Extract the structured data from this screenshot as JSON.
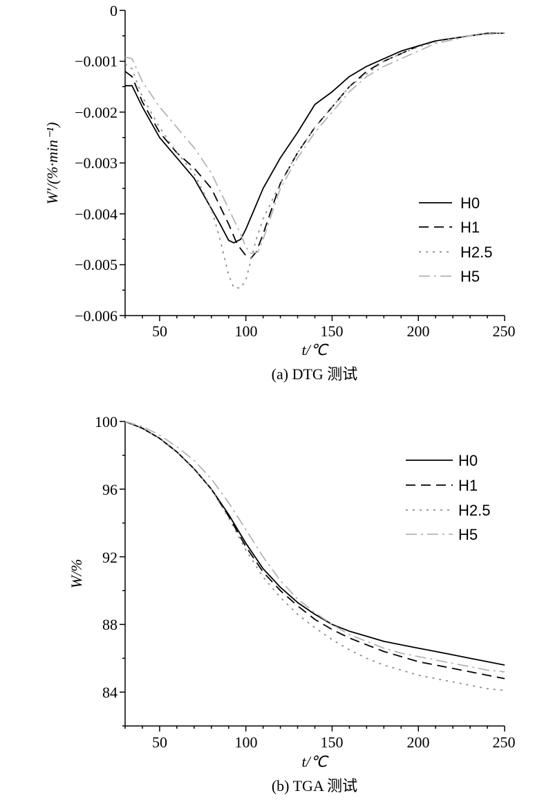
{
  "charts": [
    {
      "caption": "(a) DTG 测试",
      "xlabel": "t/℃",
      "ylabel": "W′/(%·min⁻¹)",
      "yticks": [
        "0",
        "−0.001",
        "−0.002",
        "−0.003",
        "−0.004",
        "−0.005",
        "−0.006"
      ],
      "xticks": [
        "50",
        "100",
        "150",
        "200",
        "250"
      ]
    },
    {
      "caption": "(b) TGA 测试",
      "xlabel": "t/℃",
      "ylabel": "W/%",
      "yticks": [
        "100",
        "96",
        "92",
        "88",
        "84"
      ],
      "xticks": [
        "50",
        "100",
        "150",
        "200",
        "250"
      ]
    }
  ],
  "legend": [
    "H0",
    "H1",
    "H2.5",
    "H5"
  ],
  "series_style": {
    "H0": {
      "color": "#000000",
      "dash": "none"
    },
    "H1": {
      "color": "#000000",
      "dash": "14,8"
    },
    "H2.5": {
      "color": "#8c8c8c",
      "dash": "3,7"
    },
    "H5": {
      "color": "#b4b4b4",
      "dash": "16,6,3,6"
    }
  },
  "chart_data": [
    {
      "type": "line",
      "title": "",
      "xlabel": "t/℃",
      "ylabel": "W′/(%·min⁻¹)",
      "xlim": [
        30,
        250
      ],
      "ylim": [
        -0.006,
        0
      ],
      "grid": false,
      "legend_position": "right",
      "series": [
        {
          "name": "H0",
          "points": [
            [
              30,
              -0.00148
            ],
            [
              34,
              -0.00148
            ],
            [
              40,
              -0.0019
            ],
            [
              50,
              -0.0025
            ],
            [
              60,
              -0.0029
            ],
            [
              70,
              -0.0033
            ],
            [
              80,
              -0.0039
            ],
            [
              85,
              -0.0042
            ],
            [
              90,
              -0.00452
            ],
            [
              93,
              -0.00457
            ],
            [
              97,
              -0.0045
            ],
            [
              100,
              -0.0043
            ],
            [
              105,
              -0.0039
            ],
            [
              110,
              -0.0035
            ],
            [
              120,
              -0.0029
            ],
            [
              130,
              -0.0024
            ],
            [
              140,
              -0.00185
            ],
            [
              150,
              -0.0016
            ],
            [
              160,
              -0.0013
            ],
            [
              170,
              -0.0011
            ],
            [
              180,
              -0.00095
            ],
            [
              190,
              -0.0008
            ],
            [
              200,
              -0.0007
            ],
            [
              210,
              -0.0006
            ],
            [
              220,
              -0.00055
            ],
            [
              230,
              -0.0005
            ],
            [
              240,
              -0.00045
            ],
            [
              250,
              -0.00045
            ]
          ]
        },
        {
          "name": "H1",
          "points": [
            [
              30,
              -0.0012
            ],
            [
              34,
              -0.0013
            ],
            [
              40,
              -0.0018
            ],
            [
              50,
              -0.0024
            ],
            [
              60,
              -0.0028
            ],
            [
              70,
              -0.0031
            ],
            [
              80,
              -0.0035
            ],
            [
              90,
              -0.0042
            ],
            [
              95,
              -0.0046
            ],
            [
              100,
              -0.00482
            ],
            [
              103,
              -0.00487
            ],
            [
              106,
              -0.00475
            ],
            [
              110,
              -0.0044
            ],
            [
              115,
              -0.0039
            ],
            [
              120,
              -0.0034
            ],
            [
              130,
              -0.0028
            ],
            [
              140,
              -0.0023
            ],
            [
              150,
              -0.0019
            ],
            [
              160,
              -0.0015
            ],
            [
              170,
              -0.0012
            ],
            [
              180,
              -0.001
            ],
            [
              190,
              -0.00085
            ],
            [
              200,
              -0.0007
            ],
            [
              210,
              -0.0006
            ],
            [
              220,
              -0.00055
            ],
            [
              230,
              -0.0005
            ],
            [
              240,
              -0.00045
            ],
            [
              250,
              -0.00045
            ]
          ]
        },
        {
          "name": "H2.5",
          "points": [
            [
              30,
              -0.00105
            ],
            [
              34,
              -0.00115
            ],
            [
              40,
              -0.0017
            ],
            [
              50,
              -0.0023
            ],
            [
              60,
              -0.0028
            ],
            [
              70,
              -0.0032
            ],
            [
              80,
              -0.0039
            ],
            [
              85,
              -0.0045
            ],
            [
              90,
              -0.0052
            ],
            [
              93,
              -0.00545
            ],
            [
              97,
              -0.00546
            ],
            [
              100,
              -0.0053
            ],
            [
              103,
              -0.0049
            ],
            [
              106,
              -0.0045
            ],
            [
              110,
              -0.0041
            ],
            [
              120,
              -0.0034
            ],
            [
              130,
              -0.0028
            ],
            [
              140,
              -0.0023
            ],
            [
              150,
              -0.0019
            ],
            [
              160,
              -0.0015
            ],
            [
              170,
              -0.00125
            ],
            [
              180,
              -0.001
            ],
            [
              190,
              -0.00085
            ],
            [
              200,
              -0.00072
            ],
            [
              210,
              -0.00062
            ],
            [
              220,
              -0.00055
            ],
            [
              230,
              -0.0005
            ],
            [
              240,
              -0.00045
            ],
            [
              250,
              -0.00045
            ]
          ]
        },
        {
          "name": "H5",
          "points": [
            [
              30,
              -0.00092
            ],
            [
              34,
              -0.00095
            ],
            [
              40,
              -0.0014
            ],
            [
              50,
              -0.0019
            ],
            [
              60,
              -0.0023
            ],
            [
              70,
              -0.0027
            ],
            [
              80,
              -0.0032
            ],
            [
              90,
              -0.0039
            ],
            [
              97,
              -0.0044
            ],
            [
              100,
              -0.00465
            ],
            [
              103,
              -0.00478
            ],
            [
              107,
              -0.00475
            ],
            [
              110,
              -0.0045
            ],
            [
              115,
              -0.004
            ],
            [
              120,
              -0.0035
            ],
            [
              130,
              -0.0029
            ],
            [
              140,
              -0.0024
            ],
            [
              150,
              -0.002
            ],
            [
              160,
              -0.0016
            ],
            [
              170,
              -0.0013
            ],
            [
              180,
              -0.0011
            ],
            [
              190,
              -0.00095
            ],
            [
              200,
              -0.0008
            ],
            [
              210,
              -0.00065
            ],
            [
              220,
              -0.00058
            ],
            [
              230,
              -0.0005
            ],
            [
              240,
              -0.00047
            ],
            [
              250,
              -0.00045
            ]
          ]
        }
      ]
    },
    {
      "type": "line",
      "title": "",
      "xlabel": "t/℃",
      "ylabel": "W/%",
      "xlim": [
        30,
        250
      ],
      "ylim": [
        82,
        100
      ],
      "grid": false,
      "legend_position": "top-right",
      "series": [
        {
          "name": "H0",
          "points": [
            [
              30,
              100
            ],
            [
              40,
              99.6
            ],
            [
              50,
              99
            ],
            [
              60,
              98.2
            ],
            [
              70,
              97.2
            ],
            [
              80,
              96
            ],
            [
              90,
              94.5
            ],
            [
              100,
              92.8
            ],
            [
              110,
              91.3
            ],
            [
              120,
              90.2
            ],
            [
              130,
              89.3
            ],
            [
              140,
              88.6
            ],
            [
              150,
              88
            ],
            [
              160,
              87.6
            ],
            [
              170,
              87.3
            ],
            [
              180,
              87
            ],
            [
              190,
              86.8
            ],
            [
              200,
              86.6
            ],
            [
              210,
              86.4
            ],
            [
              220,
              86.2
            ],
            [
              230,
              86
            ],
            [
              240,
              85.8
            ],
            [
              250,
              85.6
            ]
          ]
        },
        {
          "name": "H1",
          "points": [
            [
              30,
              100
            ],
            [
              40,
              99.6
            ],
            [
              50,
              99
            ],
            [
              60,
              98.2
            ],
            [
              70,
              97.2
            ],
            [
              80,
              96
            ],
            [
              90,
              94.4
            ],
            [
              100,
              92.6
            ],
            [
              110,
              91.1
            ],
            [
              120,
              90
            ],
            [
              130,
              89.1
            ],
            [
              140,
              88.3
            ],
            [
              150,
              87.7
            ],
            [
              160,
              87.2
            ],
            [
              170,
              86.8
            ],
            [
              180,
              86.4
            ],
            [
              190,
              86.1
            ],
            [
              200,
              85.8
            ],
            [
              210,
              85.6
            ],
            [
              220,
              85.4
            ],
            [
              230,
              85.2
            ],
            [
              240,
              85
            ],
            [
              250,
              84.8
            ]
          ]
        },
        {
          "name": "H2.5",
          "points": [
            [
              30,
              100
            ],
            [
              40,
              99.6
            ],
            [
              50,
              99
            ],
            [
              60,
              98.2
            ],
            [
              70,
              97.2
            ],
            [
              80,
              96
            ],
            [
              90,
              94.3
            ],
            [
              100,
              92.4
            ],
            [
              110,
              90.8
            ],
            [
              120,
              89.6
            ],
            [
              130,
              88.6
            ],
            [
              140,
              87.8
            ],
            [
              150,
              87.1
            ],
            [
              160,
              86.5
            ],
            [
              170,
              86
            ],
            [
              180,
              85.6
            ],
            [
              190,
              85.3
            ],
            [
              200,
              85
            ],
            [
              210,
              84.8
            ],
            [
              220,
              84.6
            ],
            [
              230,
              84.4
            ],
            [
              240,
              84.2
            ],
            [
              250,
              84.1
            ]
          ]
        },
        {
          "name": "H5",
          "points": [
            [
              30,
              100
            ],
            [
              40,
              99.7
            ],
            [
              50,
              99.2
            ],
            [
              60,
              98.5
            ],
            [
              70,
              97.7
            ],
            [
              80,
              96.6
            ],
            [
              90,
              95.2
            ],
            [
              100,
              93.6
            ],
            [
              110,
              92
            ],
            [
              120,
              90.6
            ],
            [
              130,
              89.5
            ],
            [
              140,
              88.7
            ],
            [
              150,
              88
            ],
            [
              160,
              87.4
            ],
            [
              170,
              87
            ],
            [
              180,
              86.6
            ],
            [
              190,
              86.3
            ],
            [
              200,
              86.1
            ],
            [
              210,
              85.9
            ],
            [
              220,
              85.7
            ],
            [
              230,
              85.5
            ],
            [
              240,
              85.3
            ],
            [
              250,
              85.2
            ]
          ]
        }
      ]
    }
  ]
}
